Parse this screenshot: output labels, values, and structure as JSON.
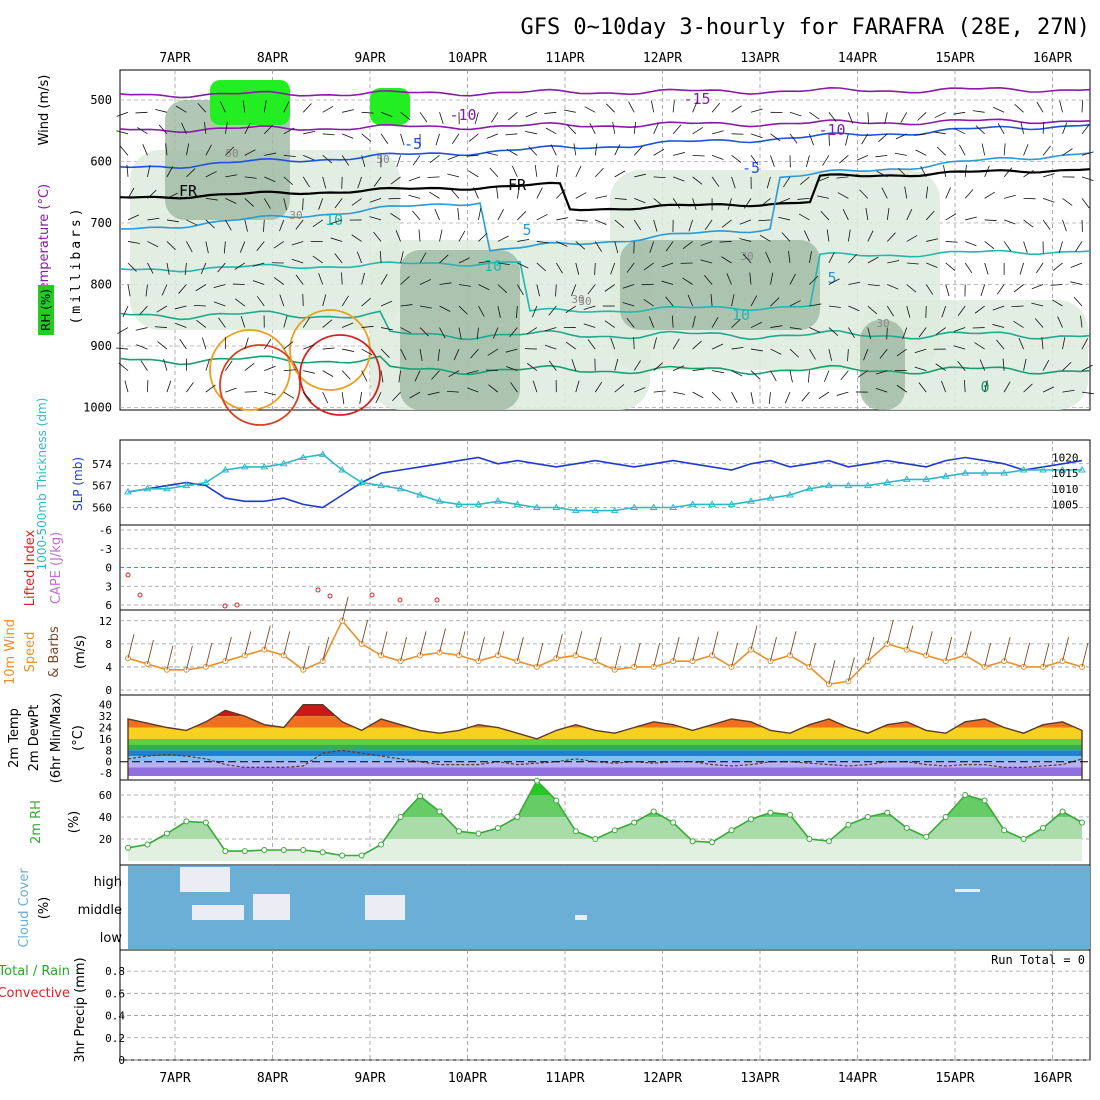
{
  "title": "GFS 0~10day 3-hourly for FARAFRA (28E, 27N)",
  "dates": [
    "7APR",
    "8APR",
    "9APR",
    "10APR",
    "11APR",
    "12APR",
    "13APR",
    "14APR",
    "15APR",
    "16APR"
  ],
  "panels": {
    "upper": {
      "ylabel_wind": "Wind (m/s)",
      "ylabel_temp": "Temperature (°C)",
      "ylabel_mb": "(millibars)",
      "ylabel_rh": "RH (%)",
      "yticks": [
        "500",
        "600",
        "700",
        "800",
        "900",
        "1000"
      ],
      "contour_labels": [
        "-15",
        "-10",
        "-10",
        "-5",
        "-5",
        "5",
        "10",
        "10",
        "5",
        "0",
        "FR",
        "FR",
        "30",
        "30",
        "30",
        "30",
        "50",
        "50",
        "10",
        "30"
      ]
    },
    "slp": {
      "ylabel_thick": "1000-500mb Thickness (dm)",
      "ylabel_slp": "SLP (mb)",
      "left_ticks": [
        "574",
        "567",
        "560"
      ],
      "right_ticks": [
        "1020",
        "1015",
        "1010",
        "1005"
      ]
    },
    "cape": {
      "ylabel_li": "Lifted Index",
      "ylabel_cape": "CAPE (J/kg)",
      "yticks": [
        "-6",
        "-3",
        "0",
        "3",
        "6"
      ]
    },
    "wind10": {
      "ylabel1": "10m Wind",
      "ylabel2": "Speed",
      "ylabel3": "& Barbs",
      "ylabel4": "(m/s)",
      "yticks": [
        "12",
        "8",
        "4",
        "0"
      ]
    },
    "temp2m": {
      "ylabel1": "2m Temp",
      "ylabel2": "2m DewPt",
      "ylabel3": "(6hr Min/Max)",
      "ylabel4": "(°C)",
      "yticks": [
        "40",
        "32",
        "24",
        "16",
        "8",
        "0",
        "-8"
      ]
    },
    "rh2m": {
      "ylabel1": "2m RH",
      "ylabel2": "(%)",
      "yticks": [
        "60",
        "40",
        "20"
      ]
    },
    "cloud": {
      "ylabel1": "Cloud Cover",
      "ylabel2": "(%)",
      "levels": [
        "high",
        "middle",
        "low"
      ]
    },
    "precip": {
      "ylabel1": "Total / Rain",
      "ylabel2": "Convective",
      "ylabel3": "3hr Precip (mm)",
      "yticks": [
        "0.8",
        "0.6",
        "0.4",
        "0.2",
        "0"
      ],
      "run_total": "Run Total = 0"
    }
  },
  "colors": {
    "slp": "#1f3bcc",
    "thickness": "#30b8c8",
    "li": "#dd2222",
    "wind_speed": "#e8902a",
    "barb": "#7a4a2a",
    "rh": "#3aa83a",
    "cloud_bg": "#6baed6"
  },
  "chart_data": [
    {
      "type": "line",
      "title": "SLP (mb)",
      "series": [
        {
          "name": "SLP (mb)",
          "values": [
            1009,
            1010,
            1011,
            1012,
            1011,
            1007,
            1006,
            1006,
            1007,
            1005,
            1004,
            1008,
            1012,
            1015,
            1016,
            1017,
            1018,
            1019,
            1020,
            1018,
            1019,
            1018,
            1017,
            1018,
            1019,
            1018,
            1017,
            1018,
            1019,
            1018,
            1017,
            1016,
            1018,
            1019,
            1017,
            1018,
            1019,
            1017,
            1018,
            1019,
            1018,
            1017,
            1019,
            1020,
            1019,
            1018,
            1016,
            1017,
            1018,
            1019
          ]
        }
      ],
      "ylim": [
        1000,
        1024
      ]
    },
    {
      "type": "line",
      "title": "1000-500mb Thickness (dm)",
      "series": [
        {
          "name": "1000-500mb Thickness (dm)",
          "values": [
            565,
            566,
            566,
            567,
            568,
            572,
            573,
            573,
            574,
            576,
            577,
            572,
            568,
            567,
            566,
            564,
            562,
            561,
            561,
            562,
            561,
            560,
            560,
            559,
            559,
            559,
            560,
            560,
            560,
            561,
            561,
            561,
            562,
            563,
            564,
            566,
            567,
            567,
            567,
            568,
            569,
            569,
            570,
            571,
            571,
            571,
            572,
            572,
            572,
            572
          ]
        }
      ],
      "ylim": [
        556,
        580
      ]
    },
    {
      "type": "line",
      "title": "10m Wind Speed (m/s)",
      "series": [
        {
          "name": "10m Wind Speed",
          "values": [
            5.5,
            4.5,
            3.5,
            3.5,
            4,
            5,
            6,
            7,
            6,
            3.5,
            5,
            12,
            8,
            6,
            5,
            6,
            6.5,
            6,
            5,
            6,
            5,
            4,
            5.5,
            6,
            5,
            3.5,
            4,
            4,
            5,
            5,
            6,
            4,
            7,
            5,
            6,
            4,
            1,
            1.5,
            5,
            8,
            7,
            6,
            5,
            6,
            4,
            5,
            4,
            4,
            5,
            4
          ]
        }
      ],
      "ylim": [
        0,
        13
      ]
    },
    {
      "type": "area",
      "title": "2m Temp (°C)",
      "series": [
        {
          "name": "2m Temp",
          "values": [
            30,
            27,
            24,
            22,
            28,
            36,
            32,
            26,
            24,
            40,
            40,
            28,
            22,
            30,
            26,
            22,
            20,
            22,
            26,
            24,
            20,
            16,
            22,
            26,
            22,
            20,
            24,
            28,
            26,
            22,
            26,
            30,
            28,
            22,
            20,
            26,
            30,
            24,
            20,
            26,
            28,
            22,
            20,
            28,
            30,
            24,
            20,
            26,
            28,
            22
          ]
        },
        {
          "name": "2m DewPt",
          "values": [
            2,
            4,
            5,
            4,
            2,
            -2,
            -4,
            -4,
            -4,
            -3,
            6,
            8,
            6,
            4,
            2,
            0,
            -2,
            -2,
            -2,
            0,
            -2,
            -1,
            0,
            2,
            0,
            -1,
            0,
            -1,
            0,
            0,
            -2,
            -3,
            -2,
            0,
            0,
            -1,
            -2,
            -3,
            -2,
            0,
            0,
            -2,
            -3,
            -2,
            -2,
            -4,
            -4,
            -3,
            -2,
            2
          ]
        }
      ],
      "ylim": [
        -10,
        44
      ]
    },
    {
      "type": "area",
      "title": "2m RH (%)",
      "series": [
        {
          "name": "2m RH",
          "values": [
            12,
            15,
            25,
            36,
            35,
            9,
            9,
            10,
            10,
            10,
            8,
            5,
            5,
            15,
            40,
            59,
            45,
            27,
            25,
            30,
            40,
            73,
            55,
            27,
            20,
            28,
            35,
            45,
            35,
            18,
            17,
            28,
            38,
            44,
            42,
            20,
            18,
            33,
            40,
            44,
            30,
            22,
            40,
            60,
            55,
            28,
            20,
            30,
            45,
            35
          ]
        }
      ],
      "ylim": [
        0,
        70
      ]
    },
    {
      "type": "bar",
      "title": "3hr Precip (mm)",
      "series": [
        {
          "name": "Total / Rain",
          "values": [
            0,
            0,
            0,
            0,
            0,
            0,
            0,
            0,
            0,
            0
          ]
        }
      ],
      "categories": [
        "7APR",
        "8APR",
        "9APR",
        "10APR",
        "11APR",
        "12APR",
        "13APR",
        "14APR",
        "15APR",
        "16APR"
      ],
      "ylim": [
        0,
        0.9
      ]
    }
  ]
}
